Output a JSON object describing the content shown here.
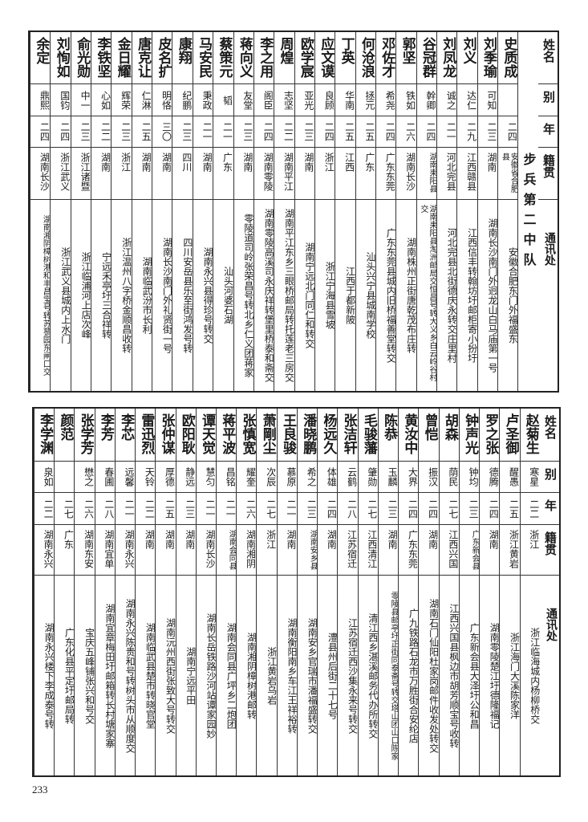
{
  "page_number": "233",
  "header_labels": {
    "name": "姓名",
    "alias": "别号",
    "age": "年龄",
    "native": "籍贯",
    "address": "通讯处"
  },
  "top_table": {
    "unit": "步兵第二中队",
    "rows": [
      {
        "name": "史质成",
        "alias": "",
        "age": "二四",
        "native": "安徽省合肥县",
        "address": "安徽合肥东门外福盛东"
      },
      {
        "name": "刘季瑜",
        "alias": "可知",
        "age": "二三",
        "native": "湖南",
        "address": "湖南长沙南门外迥龙山白马庙第一号"
      },
      {
        "name": "刘义",
        "alias": "达仁",
        "age": "二九",
        "native": "江西赣县",
        "address": "江西信丰转翰坊圩邮柜寄小扮圩"
      },
      {
        "name": "刘凤龙",
        "alias": "诚之",
        "age": "二一",
        "native": "河北完县",
        "address": "河北完县北街德庆永转交庄里村"
      },
      {
        "name": "谷冠群",
        "alias": "幹卿",
        "age": "二四",
        "native": "湖南耒阳县",
        "address": "湖南耒阳县淘洲邮局交恒昌号转大义乡白云岭谷村交"
      },
      {
        "name": "郭坚",
        "alias": "铁如",
        "age": "二六",
        "native": "湖南长沙",
        "address": "湖南株州正街唐乾茂布庄转"
      },
      {
        "name": "邓佐才",
        "alias": "希尧",
        "age": "二四",
        "native": "广东东莞",
        "address": "广东东莞县城内旧桥福善堂转交"
      },
      {
        "name": "何沧浪",
        "alias": "拯元",
        "age": "二五",
        "native": "广东",
        "address": "汕头兴宁县城南学校"
      },
      {
        "name": "丁英",
        "alias": "华南",
        "age": "二五",
        "native": "江西",
        "address": "江西于都新陂"
      },
      {
        "name": "应文谟",
        "alias": "良顾",
        "age": "二四",
        "native": "浙江",
        "address": "浙江宁海县雪坡"
      },
      {
        "name": "欧学宸",
        "alias": "亚光",
        "age": "二三",
        "native": "湖南",
        "address": "湖南宁远北门同仁和转交"
      },
      {
        "name": "周煌",
        "alias": "志坚",
        "age": "二二",
        "native": "湖南平江",
        "address": "湖南平江东乡三眼桥邮局转托莲老三房交"
      },
      {
        "name": "李之用",
        "alias": "阁臣",
        "age": "二四",
        "native": "湖南零陵",
        "address": "湖南零陵高溪司永庆祥转堡里桥泰和斋交"
      },
      {
        "name": "蒋向义",
        "alias": "友堂",
        "age": "二三",
        "native": "湖南",
        "address": "零陵道司岭张荣昌号转北乡仁义团蒋家"
      },
      {
        "name": "蔡策元",
        "alias": "韬",
        "age": "二一",
        "native": "广东",
        "address": "汕头河婆石湖"
      },
      {
        "name": "马安民",
        "alias": "秉政",
        "age": "二一",
        "native": "湖南",
        "address": "湖南永兴县得珍号转交"
      },
      {
        "name": "康翔",
        "alias": "纪鹏",
        "age": "二三",
        "native": "四川",
        "address": "四川安岳县乐至街鸿发号转"
      },
      {
        "name": "皮名扩",
        "alias": "明恪",
        "age": "三〇",
        "native": "湖南",
        "address": "湖南长沙南门外礼贤街一号"
      },
      {
        "name": "唐克让",
        "alias": "仁淋",
        "age": "二五",
        "native": "湖南",
        "address": "湖南临武汾市长利"
      },
      {
        "name": "金日耀",
        "alias": "辉荣",
        "age": "二三",
        "native": "浙江",
        "address": "浙江温州八字桥金顺昌收转"
      },
      {
        "name": "李铁坚",
        "alias": "心如",
        "age": "二二",
        "native": "湖南",
        "address": "宁远禾亭圩三合祥转"
      },
      {
        "name": "俞光勋",
        "alias": "中一",
        "age": "二三",
        "native": "浙江诸暨",
        "address": "浙江临浦河上店次峰"
      },
      {
        "name": "刘恂如",
        "alias": "国钧",
        "age": "二四",
        "native": "浙江武义",
        "address": "浙江武义县城内上水门"
      },
      {
        "name": "余定",
        "alias": "鼎熙",
        "age": "二四",
        "native": "湖南长沙",
        "address": "湖南湘阴樟树港和丰昌宝号转苏蓼园东闸口交"
      }
    ]
  },
  "bottom_table": {
    "rows": [
      {
        "name": "赵菊生",
        "alias": "寒星",
        "age": "二二",
        "native": "浙江",
        "address": "浙江临海城内杨柳桥交"
      },
      {
        "name": "卢圣御",
        "alias": "醒愚",
        "age": "二五",
        "native": "浙江黄岩",
        "address": "浙江海门大溪陈家洋"
      },
      {
        "name": "罗之张",
        "alias": "德腾",
        "age": "二四",
        "native": "湖南",
        "address": "湖南零陵楚江圩德隆福记"
      },
      {
        "name": "钟声光",
        "alias": "钟均",
        "age": "二三",
        "native": "广东新会县",
        "address": "广东新会县大泽圩公和昌"
      },
      {
        "name": "胡森",
        "alias": "荫民",
        "age": "二七",
        "native": "江西兴国",
        "address": "江西兴国县枫边市胡芳顺宝号收转"
      },
      {
        "name": "曾恺",
        "alias": "振汉",
        "age": "二四",
        "native": "湖南",
        "address": "湖南石门仙阳杜家岗邮件收发处转交"
      },
      {
        "name": "黄汝中",
        "alias": "大界",
        "age": "二四",
        "native": "广东东莞",
        "address": "广九铁路石龙市万胜街合安纶店"
      },
      {
        "name": "陈恭",
        "alias": "玉麟",
        "age": "二三",
        "native": "湖南",
        "address": "零陵县邮亭圩正街同泰斋号转交塔山团山口陈家"
      },
      {
        "name": "毛骏藩",
        "alias": "肇勋",
        "age": "二七",
        "native": "江西清江",
        "address": "清江西乡湛溪邮务代办所转交"
      },
      {
        "name": "张洁轩",
        "alias": "云鹤",
        "age": "二八",
        "native": "江苏宿迁",
        "address": "江苏宿迁西沙集永来号转交"
      },
      {
        "name": "杨远久",
        "alias": "体雄",
        "age": "二四",
        "native": "湖南",
        "address": "澧县州后街二十七号"
      },
      {
        "name": "潘晓鹏",
        "alias": "希之",
        "age": "二三",
        "native": "湖南安乡县",
        "address": "湖南安乡官瑞市潘福盛转交"
      },
      {
        "name": "王良骏",
        "alias": "慕原",
        "age": "二一",
        "native": "湖南",
        "address": "湖南衡阳南乡车江王祥裕转"
      },
      {
        "name": "萧剛尘",
        "alias": "次辰",
        "age": "二七",
        "native": "浙江",
        "address": "浙江黄岩乌岩"
      },
      {
        "name": "张慎宽",
        "alias": "耀奎",
        "age": "二六",
        "native": "湖南湘阴",
        "address": "湖南湘阴樟树港邮转"
      },
      {
        "name": "蒋平波",
        "alias": "昌铭",
        "age": "二一",
        "native": "湖南会同县",
        "address": "湖南会同县广坪乡二炮团"
      },
      {
        "name": "谭天觉",
        "alias": "慧匀",
        "age": "二一",
        "native": "湖南长沙",
        "address": "湖南长岳铁路沙河站谭家园妙"
      },
      {
        "name": "欧阳耿",
        "alias": "静远",
        "age": "二三",
        "native": "湖南",
        "address": "湖南宁远平田"
      },
      {
        "name": "张仲谋",
        "alias": "厚德",
        "age": "二五",
        "native": "湖南",
        "address": "湖南沅州西街张致大号转交"
      },
      {
        "name": "雷迅烈",
        "alias": "天铃",
        "age": "二二",
        "native": "湖南",
        "address": "湖南临武县楚市转晓官堂"
      },
      {
        "name": "李芯",
        "alias": "远馨",
        "age": "二一",
        "native": "湖南永兴",
        "address": "湖南永兴陈贵和号转树头市从顺度交"
      },
      {
        "name": "李芳",
        "alias": "春圃",
        "age": "二八",
        "native": "湖南宜单",
        "address": "湖南宜章梅田圩邮箱转长村塘家寨"
      },
      {
        "name": "张学芳",
        "alias": "懋之",
        "age": "二六",
        "native": "湖南东安",
        "address": "宝庆五峰铺张兴和号交"
      },
      {
        "name": "颜范",
        "alias": "",
        "age": "二七",
        "native": "广东",
        "address": "广东化县平定圩邮局转"
      },
      {
        "name": "李学渊",
        "alias": "泉如",
        "age": "二二",
        "native": "湖南永兴",
        "address": "湖南永兴楼下李成泰号转"
      }
    ]
  }
}
